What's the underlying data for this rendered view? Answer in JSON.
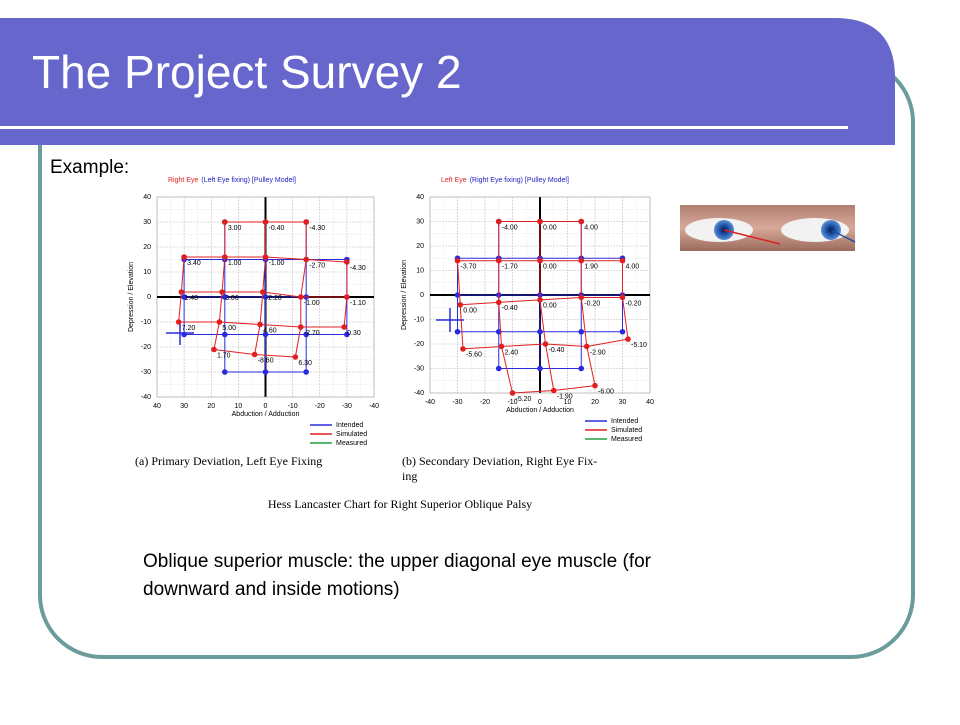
{
  "slide": {
    "title": "The Project Survey 2",
    "example_label": "Example:",
    "figure_caption": "Hess Lancaster Chart for Right Superior Oblique Palsy",
    "body_lines": [
      "Oblique superior muscle: the upper diagonal eye muscle (for",
      "downward and inside motions)"
    ]
  },
  "chart_data": [
    {
      "type": "scatter",
      "title_parts": [
        {
          "text": "Right Eye",
          "color": "#e02020"
        },
        {
          "text": "(Left Eye fixing) [Pulley Model]",
          "color": "#2020c0"
        }
      ],
      "xlabel": "Abduction / Adduction",
      "ylabel": "Depression / Elevation",
      "xlim": [
        40,
        -40
      ],
      "ylim": [
        -40,
        40
      ],
      "xticks": [
        40,
        30,
        20,
        10,
        0,
        -10,
        -20,
        -30,
        -40
      ],
      "yticks": [
        40,
        30,
        20,
        10,
        0,
        -10,
        -20,
        -30,
        -40
      ],
      "grid": true,
      "series": [
        {
          "name": "Intended",
          "color": "#2a2ae0",
          "x": [
            15,
            0,
            -15,
            30,
            15,
            0,
            -15,
            -30,
            30,
            15,
            0,
            -15,
            -30,
            30,
            15,
            0,
            -15,
            -30,
            15,
            0,
            -15
          ],
          "y": [
            30,
            30,
            30,
            15,
            15,
            15,
            15,
            15,
            0,
            0,
            0,
            0,
            0,
            -15,
            -15,
            -15,
            -15,
            -15,
            -30,
            -30,
            -30
          ]
        },
        {
          "name": "Simulated",
          "color": "#e02020",
          "x": [
            15,
            0,
            -15,
            30,
            15,
            0,
            -15,
            -30,
            31,
            16,
            1,
            -13,
            -30,
            32,
            17,
            2,
            -13,
            -29,
            19,
            4,
            -11
          ],
          "y": [
            30,
            30,
            30,
            16,
            16,
            16,
            15,
            14,
            2,
            2,
            2,
            0,
            0,
            -10,
            -10,
            -11,
            -12,
            -12,
            -21,
            -23,
            -24
          ],
          "point_labels": [
            "3.00",
            "-0.40",
            "-4.30",
            "3.40",
            "1.00",
            "-1.00",
            "-2.70",
            "-4.30",
            "1.40",
            "3.00",
            "-2.20",
            "-1.00",
            "-1.10",
            "7.20",
            "5.00",
            "4.60",
            "-2.70",
            "0.30",
            "1.70",
            "-8.60",
            "6.30"
          ]
        },
        {
          "name": "Measured",
          "color": "#20a040",
          "x": [],
          "y": []
        }
      ],
      "caption_lines": [
        "(a) Primary Deviation, Left Eye Fixing"
      ]
    },
    {
      "type": "scatter",
      "title_parts": [
        {
          "text": "Left Eye",
          "color": "#e02020"
        },
        {
          "text": "(Right Eye fixing) [Pulley Model]",
          "color": "#2020c0"
        }
      ],
      "xlabel": "Abduction / Adduction",
      "ylabel": "Depression / Elevation",
      "xlim": [
        -40,
        40
      ],
      "ylim": [
        -40,
        40
      ],
      "xticks": [
        -40,
        -30,
        -20,
        -10,
        0,
        10,
        20,
        30,
        40
      ],
      "yticks": [
        40,
        30,
        20,
        10,
        0,
        -10,
        -20,
        -30,
        -40
      ],
      "grid": true,
      "series": [
        {
          "name": "Intended",
          "color": "#2a2ae0",
          "x": [
            -15,
            0,
            15,
            -30,
            -15,
            0,
            15,
            30,
            -30,
            -15,
            0,
            15,
            30,
            -30,
            -15,
            0,
            15,
            30,
            -15,
            0,
            15
          ],
          "y": [
            30,
            30,
            30,
            15,
            15,
            15,
            15,
            15,
            0,
            0,
            0,
            0,
            0,
            -15,
            -15,
            -15,
            -15,
            -15,
            -30,
            -30,
            -30
          ]
        },
        {
          "name": "Simulated",
          "color": "#e02020",
          "x": [
            -15,
            0,
            15,
            -30,
            -15,
            0,
            15,
            30,
            -29,
            -15,
            0,
            15,
            30,
            -28,
            -14,
            2,
            17,
            32,
            -10,
            5,
            20
          ],
          "y": [
            30,
            30,
            30,
            14,
            14,
            14,
            14,
            14,
            -4,
            -3,
            -2,
            -1,
            -1,
            -22,
            -21,
            -20,
            -21,
            -18,
            -40,
            -39,
            -37
          ],
          "point_labels": [
            "-4.00",
            "0.00",
            "4.00",
            "-3.70",
            "-1.70",
            "0.00",
            "1.90",
            "4.00",
            "0.00",
            "-0.40",
            "0.00",
            "-0.20",
            "-0.20",
            "-5.60",
            "2.40",
            "-0.40",
            "-2.90",
            "-5.10",
            "-5.20",
            "-1.90",
            "-6.00"
          ]
        },
        {
          "name": "Measured",
          "color": "#20a040",
          "x": [],
          "y": []
        }
      ],
      "caption_lines": [
        "(b) Secondary Deviation, Right Eye Fix-",
        "ing"
      ]
    }
  ]
}
